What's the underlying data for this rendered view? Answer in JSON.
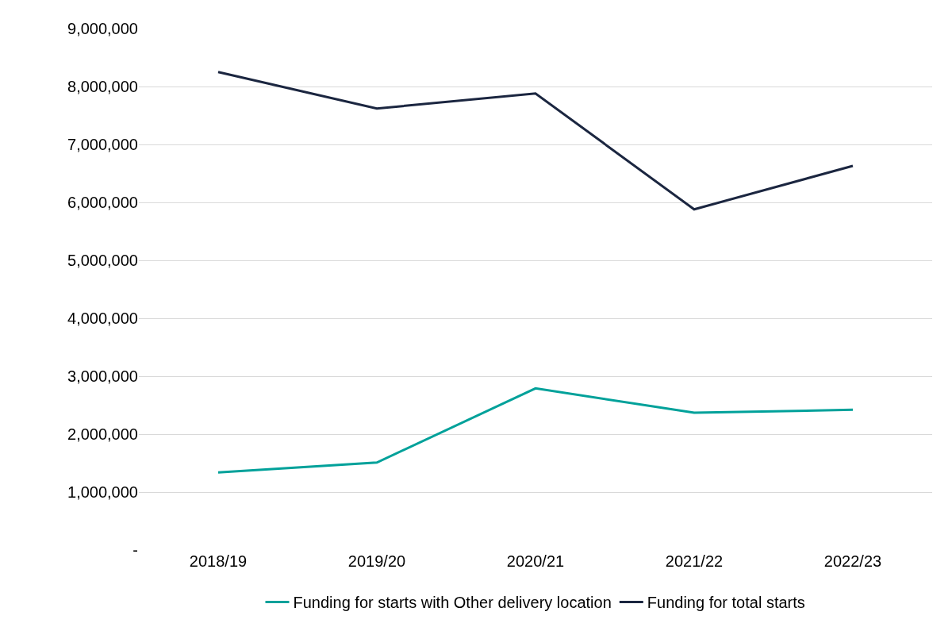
{
  "chart_data": {
    "type": "line",
    "categories": [
      "2018/19",
      "2019/20",
      "2020/21",
      "2021/22",
      "2022/23"
    ],
    "series": [
      {
        "name": "Funding for starts with Other delivery location",
        "color": "#00a19a",
        "values": [
          1340000,
          1510000,
          2790000,
          2370000,
          2420000
        ]
      },
      {
        "name": "Funding for total starts",
        "color": "#1b2640",
        "values": [
          8250000,
          7620000,
          7880000,
          5880000,
          6630000
        ]
      }
    ],
    "ylim": [
      0,
      9000000
    ],
    "yticks": [
      {
        "value": 0,
        "label": "-"
      },
      {
        "value": 1000000,
        "label": "1,000,000"
      },
      {
        "value": 2000000,
        "label": "2,000,000"
      },
      {
        "value": 3000000,
        "label": "3,000,000"
      },
      {
        "value": 4000000,
        "label": "4,000,000"
      },
      {
        "value": 5000000,
        "label": "5,000,000"
      },
      {
        "value": 6000000,
        "label": "6,000,000"
      },
      {
        "value": 7000000,
        "label": "7,000,000"
      },
      {
        "value": 8000000,
        "label": "8,000,000"
      },
      {
        "value": 9000000,
        "label": "9,000,000"
      }
    ],
    "grid": "y",
    "legend": "bottom",
    "marker": "none",
    "line_style": "solid"
  }
}
